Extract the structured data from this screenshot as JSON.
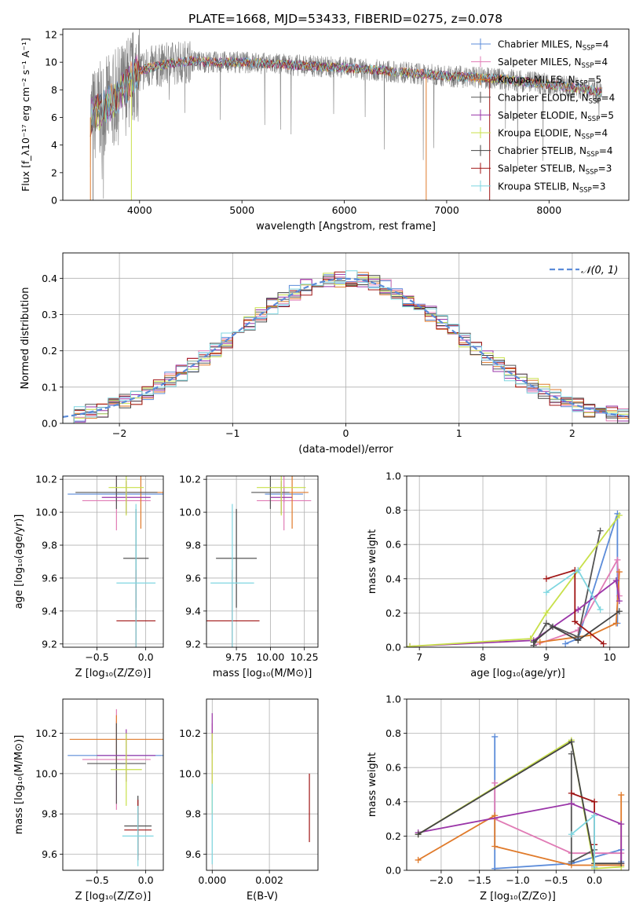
{
  "figure_title": "PLATE=1668, MJD=53433, FIBERID=0275, z=0.078",
  "colors": {
    "chabrier_miles": "#5b8bd9",
    "salpeter_miles": "#e07bb5",
    "kroupa_miles": "#e07a2a",
    "chabrier_elodie": "#555555",
    "salpeter_elodie": "#9a35a8",
    "kroupa_elodie": "#c8e04a",
    "chabrier_stelib": "#444444",
    "salpeter_stelib": "#a01515",
    "kroupa_stelib": "#7fd6e0",
    "data": "#808080"
  },
  "chart_data": [
    {
      "type": "line",
      "panel": "spectrum",
      "xlabel": "wavelength [Angstrom, rest frame]",
      "ylabel": "Flux [f_λ10⁻¹⁷ erg cm⁻² s⁻¹ A⁻¹]",
      "xlim": [
        3250,
        8780
      ],
      "ylim": [
        0,
        12.4
      ],
      "xticks": [
        "4000",
        "5000",
        "6000",
        "7000",
        "8000"
      ],
      "yticks": [
        "0",
        "2",
        "4",
        "6",
        "8",
        "10",
        "12"
      ],
      "legend": {
        "placement": "top-right",
        "entries": [
          {
            "label": "Chabrier MILES, N",
            "sub": "SSP",
            "tail": "=4",
            "color": "#5b8bd9"
          },
          {
            "label": "Salpeter MILES, N",
            "sub": "SSP",
            "tail": "=4",
            "color": "#e07bb5"
          },
          {
            "label": "Kroupa MILES, N",
            "sub": "SSP",
            "tail": "=5",
            "color": "#e07a2a"
          },
          {
            "label": "Chabrier ELODIE, N",
            "sub": "SSP",
            "tail": "=4",
            "color": "#555555"
          },
          {
            "label": "Salpeter ELODIE, N",
            "sub": "SSP",
            "tail": "=5",
            "color": "#9a35a8"
          },
          {
            "label": "Kroupa ELODIE, N",
            "sub": "SSP",
            "tail": "=4",
            "color": "#c8e04a"
          },
          {
            "label": "Chabrier STELIB, N",
            "sub": "SSP",
            "tail": "=4",
            "color": "#444444"
          },
          {
            "label": "Salpeter STELIB, N",
            "sub": "SSP",
            "tail": "=3",
            "color": "#a01515"
          },
          {
            "label": "Kroupa STELIB, N",
            "sub": "SSP",
            "tail": "=3",
            "color": "#7fd6e0"
          }
        ]
      },
      "continuum": [
        [
          3520,
          6.0
        ],
        [
          3600,
          6.4
        ],
        [
          3700,
          7.0
        ],
        [
          3800,
          7.6
        ],
        [
          3900,
          8.6
        ],
        [
          4000,
          9.4
        ],
        [
          4100,
          9.6
        ],
        [
          4300,
          9.9
        ],
        [
          4500,
          10.1
        ],
        [
          4700,
          10.0
        ],
        [
          5000,
          10.0
        ],
        [
          5500,
          9.8
        ],
        [
          6000,
          9.6
        ],
        [
          6500,
          9.3
        ],
        [
          7000,
          9.0
        ],
        [
          7500,
          8.8
        ],
        [
          8000,
          8.4
        ],
        [
          8400,
          8.0
        ],
        [
          8520,
          7.8
        ]
      ]
    },
    {
      "type": "line",
      "panel": "residual_hist",
      "xlabel": "(data-model)/error",
      "ylabel": "Normed distribution",
      "xlim": [
        -2.5,
        2.5
      ],
      "ylim": [
        0,
        0.47
      ],
      "xticks": [
        "−2",
        "−1",
        "0",
        "1",
        "2"
      ],
      "yticks": [
        "0.0",
        "0.1",
        "0.2",
        "0.3",
        "0.4"
      ],
      "legend": {
        "placement": "top-right",
        "label": "𝒩(0, 1)",
        "color": "#5b8bd9"
      }
    },
    {
      "type": "scatter",
      "panel": "age_vs_Z",
      "xlabel": "Z [log₁₀(Z/Z⊙)]",
      "ylabel": "age [log₁₀(age/yr)]",
      "xlim": [
        -0.85,
        0.18
      ],
      "ylim": [
        9.18,
        10.22
      ],
      "xticks": [
        "−0.5",
        "0.0"
      ],
      "yticks": [
        "9.2",
        "9.4",
        "9.6",
        "9.8",
        "10.0",
        "10.2"
      ],
      "points": [
        {
          "x": -0.3,
          "y": 10.11,
          "xerr": 0.5,
          "yerr": 0.05,
          "color": "#5b8bd9"
        },
        {
          "x": -0.3,
          "y": 10.07,
          "xerr": 0.35,
          "yerr": 0.18,
          "color": "#e07bb5"
        },
        {
          "x": -0.05,
          "y": 10.12,
          "xerr": 0.25,
          "yerr": 0.22,
          "color": "#e07a2a"
        },
        {
          "x": -0.3,
          "y": 10.12,
          "xerr": 0.42,
          "yerr": 0.1,
          "color": "#555555"
        },
        {
          "x": -0.2,
          "y": 10.09,
          "xerr": 0.25,
          "yerr": 0.1,
          "color": "#9a35a8"
        },
        {
          "x": -0.2,
          "y": 10.15,
          "xerr": 0.18,
          "yerr": 0.17,
          "color": "#c8e04a"
        },
        {
          "x": -0.1,
          "y": 9.72,
          "xerr": 0.13,
          "yerr": 0.3,
          "color": "#444444"
        },
        {
          "x": -0.1,
          "y": 9.34,
          "xerr": 0.2,
          "yerr": 0.31,
          "color": "#a01515"
        },
        {
          "x": -0.1,
          "y": 9.57,
          "xerr": 0.2,
          "yerr": 0.48,
          "color": "#7fd6e0"
        }
      ]
    },
    {
      "type": "scatter",
      "panel": "age_vs_mass",
      "xlabel": "mass [log₁₀(M/M⊙)]",
      "ylabel": "",
      "xlim": [
        9.53,
        10.35
      ],
      "ylim": [
        9.18,
        10.22
      ],
      "xticks": [
        "9.75",
        "10.00",
        "10.25"
      ],
      "yticks": [
        "9.2",
        "9.4",
        "9.6",
        "9.8",
        "10.0",
        "10.2"
      ],
      "points": [
        {
          "x": 10.1,
          "y": 10.11,
          "xerr": 0.14,
          "yerr": 0.05,
          "color": "#5b8bd9"
        },
        {
          "x": 10.1,
          "y": 10.07,
          "xerr": 0.2,
          "yerr": 0.18,
          "color": "#e07bb5"
        },
        {
          "x": 10.16,
          "y": 10.12,
          "xerr": 0.12,
          "yerr": 0.22,
          "color": "#e07a2a"
        },
        {
          "x": 10.0,
          "y": 10.12,
          "xerr": 0.14,
          "yerr": 0.1,
          "color": "#555555"
        },
        {
          "x": 10.08,
          "y": 10.09,
          "xerr": 0.08,
          "yerr": 0.1,
          "color": "#9a35a8"
        },
        {
          "x": 10.08,
          "y": 10.15,
          "xerr": 0.18,
          "yerr": 0.17,
          "color": "#c8e04a"
        },
        {
          "x": 9.75,
          "y": 9.72,
          "xerr": 0.15,
          "yerr": 0.3,
          "color": "#444444"
        },
        {
          "x": 9.72,
          "y": 9.34,
          "xerr": 0.2,
          "yerr": 0.31,
          "color": "#a01515"
        },
        {
          "x": 9.72,
          "y": 9.57,
          "xerr": 0.16,
          "yerr": 0.48,
          "color": "#7fd6e0"
        }
      ]
    },
    {
      "type": "line",
      "panel": "weight_vs_age",
      "xlabel": "age [log₁₀(age/yr)]",
      "ylabel": "mass weight",
      "xlim": [
        6.8,
        10.3
      ],
      "ylim": [
        0,
        1.0
      ],
      "xticks": [
        "7",
        "8",
        "9",
        "10"
      ],
      "yticks": [
        "0.0",
        "0.2",
        "0.4",
        "0.6",
        "0.8",
        "1.0"
      ],
      "series": [
        {
          "color": "#5b8bd9",
          "points": [
            [
              9.3,
              0.02
            ],
            [
              9.5,
              0.05
            ],
            [
              10.12,
              0.78
            ],
            [
              10.12,
              0.14
            ]
          ]
        },
        {
          "color": "#e07bb5",
          "points": [
            [
              8.8,
              0.01
            ],
            [
              9.5,
              0.1
            ],
            [
              10.12,
              0.51
            ],
            [
              10.15,
              0.3
            ]
          ]
        },
        {
          "color": "#e07a2a",
          "points": [
            [
              8.9,
              0.03
            ],
            [
              9.7,
              0.07
            ],
            [
              10.1,
              0.14
            ],
            [
              10.15,
              0.44
            ]
          ]
        },
        {
          "color": "#555555",
          "points": [
            [
              8.8,
              0.01
            ],
            [
              9.0,
              0.14
            ],
            [
              9.5,
              0.06
            ],
            [
              9.85,
              0.68
            ]
          ]
        },
        {
          "color": "#9a35a8",
          "points": [
            [
              6.85,
              0.005
            ],
            [
              8.8,
              0.04
            ],
            [
              9.5,
              0.22
            ],
            [
              10.1,
              0.39
            ],
            [
              10.15,
              0.27
            ]
          ]
        },
        {
          "color": "#c8e04a",
          "points": [
            [
              6.85,
              0.005
            ],
            [
              8.75,
              0.05
            ],
            [
              9.0,
              0.2
            ],
            [
              10.15,
              0.77
            ]
          ]
        },
        {
          "color": "#444444",
          "points": [
            [
              8.8,
              0.03
            ],
            [
              9.1,
              0.12
            ],
            [
              9.5,
              0.04
            ],
            [
              10.15,
              0.21
            ]
          ]
        },
        {
          "color": "#a01515",
          "points": [
            [
              9.0,
              0.4
            ],
            [
              9.45,
              0.45
            ],
            [
              9.45,
              0.15
            ],
            [
              9.9,
              0.02
            ]
          ]
        },
        {
          "color": "#7fd6e0",
          "points": [
            [
              9.0,
              0.32
            ],
            [
              9.5,
              0.45
            ],
            [
              9.85,
              0.22
            ]
          ]
        }
      ]
    },
    {
      "type": "scatter",
      "panel": "mass_vs_Z",
      "xlabel": "Z [log₁₀(Z/Z⊙)]",
      "ylabel": "mass [log₁₀(M/M⊙)]",
      "xlim": [
        -0.85,
        0.18
      ],
      "ylim": [
        9.52,
        10.37
      ],
      "xticks": [
        "−0.5",
        "0.0"
      ],
      "yticks": [
        "9.6",
        "9.8",
        "10.0",
        "10.2"
      ],
      "points": [
        {
          "x": -0.3,
          "y": 10.09,
          "xerr": 0.5,
          "yerr": 0.17,
          "color": "#5b8bd9"
        },
        {
          "x": -0.3,
          "y": 10.07,
          "xerr": 0.35,
          "yerr": 0.25,
          "color": "#e07bb5"
        },
        {
          "x": -0.3,
          "y": 10.17,
          "xerr": 0.48,
          "yerr": 0.12,
          "color": "#e07a2a"
        },
        {
          "x": -0.3,
          "y": 10.05,
          "xerr": 0.3,
          "yerr": 0.2,
          "color": "#555555"
        },
        {
          "x": -0.2,
          "y": 10.09,
          "xerr": 0.3,
          "yerr": 0.13,
          "color": "#9a35a8"
        },
        {
          "x": -0.2,
          "y": 10.02,
          "xerr": 0.16,
          "yerr": 0.18,
          "color": "#c8e04a"
        },
        {
          "x": -0.08,
          "y": 9.74,
          "xerr": 0.14,
          "yerr": 0.15,
          "color": "#444444"
        },
        {
          "x": -0.08,
          "y": 9.72,
          "xerr": 0.14,
          "yerr": 0.15,
          "color": "#a01515"
        },
        {
          "x": -0.08,
          "y": 9.69,
          "xerr": 0.16,
          "yerr": 0.15,
          "color": "#7fd6e0"
        }
      ]
    },
    {
      "type": "scatter",
      "panel": "mass_vs_ebv",
      "xlabel": "E(B-V)",
      "ylabel": "",
      "xlim": [
        -0.0002,
        0.0037
      ],
      "ylim": [
        9.52,
        10.37
      ],
      "xticks": [
        "0.000",
        "0.002"
      ],
      "yticks": [
        "9.6",
        "9.8",
        "10.0",
        "10.2"
      ],
      "points": [
        {
          "x": 0.0,
          "y": 10.1,
          "yerr": 0.15,
          "color": "#e07bb5"
        },
        {
          "x": 0.0,
          "y": 10.2,
          "yerr": 0.1,
          "color": "#9a35a8"
        },
        {
          "x": 0.0,
          "y": 10.0,
          "yerr": 0.2,
          "color": "#c8e04a"
        },
        {
          "x": 0.0,
          "y": 9.75,
          "yerr": 0.2,
          "color": "#7fd6e0"
        },
        {
          "x": 0.0034,
          "y": 9.83,
          "yerr": 0.17,
          "color": "#a01515"
        }
      ]
    },
    {
      "type": "line",
      "panel": "weight_vs_Z",
      "xlabel": "Z [log₁₀(Z/Z⊙)]",
      "ylabel": "mass weight",
      "xlim": [
        -2.45,
        0.45
      ],
      "ylim": [
        0,
        1.0
      ],
      "xticks": [
        "−2.0",
        "−1.5",
        "−1.0",
        "−0.5",
        "0.0"
      ],
      "yticks": [
        "0.0",
        "0.2",
        "0.4",
        "0.6",
        "0.8",
        "1.0"
      ],
      "series": [
        {
          "color": "#5b8bd9",
          "points": [
            [
              -1.3,
              0.78
            ],
            [
              -1.3,
              0.01
            ],
            [
              -0.3,
              0.04
            ],
            [
              0.35,
              0.12
            ],
            [
              0.35,
              0.05
            ]
          ]
        },
        {
          "color": "#e07bb5",
          "points": [
            [
              -1.3,
              0.51
            ],
            [
              -1.3,
              0.3
            ],
            [
              -0.3,
              0.1
            ],
            [
              0.35,
              0.1
            ]
          ]
        },
        {
          "color": "#e07a2a",
          "points": [
            [
              -2.3,
              0.06
            ],
            [
              -1.3,
              0.32
            ],
            [
              -1.3,
              0.14
            ],
            [
              -0.3,
              0.03
            ],
            [
              0.35,
              0.03
            ],
            [
              0.35,
              0.44
            ]
          ]
        },
        {
          "color": "#555555",
          "points": [
            [
              -0.3,
              0.68
            ],
            [
              -0.3,
              0.05
            ],
            [
              0.0,
              0.12
            ]
          ]
        },
        {
          "color": "#9a35a8",
          "points": [
            [
              -2.3,
              0.22
            ],
            [
              -0.3,
              0.39
            ],
            [
              0.35,
              0.27
            ],
            [
              0.35,
              0.04
            ]
          ]
        },
        {
          "color": "#c8e04a",
          "points": [
            [
              -2.3,
              0.21
            ],
            [
              -0.3,
              0.76
            ],
            [
              0.0,
              0.01
            ],
            [
              0.35,
              0.02
            ]
          ]
        },
        {
          "color": "#444444",
          "points": [
            [
              -2.3,
              0.21
            ],
            [
              -0.3,
              0.75
            ],
            [
              0.0,
              0.04
            ],
            [
              0.35,
              0.04
            ]
          ]
        },
        {
          "color": "#a01515",
          "points": [
            [
              -0.3,
              0.45
            ],
            [
              0.0,
              0.4
            ],
            [
              0.0,
              0.15
            ],
            [
              0.0,
              0.02
            ]
          ]
        },
        {
          "color": "#7fd6e0",
          "points": [
            [
              -0.3,
              0.21
            ],
            [
              0.0,
              0.32
            ],
            [
              0.0,
              0.02
            ]
          ]
        }
      ]
    }
  ]
}
